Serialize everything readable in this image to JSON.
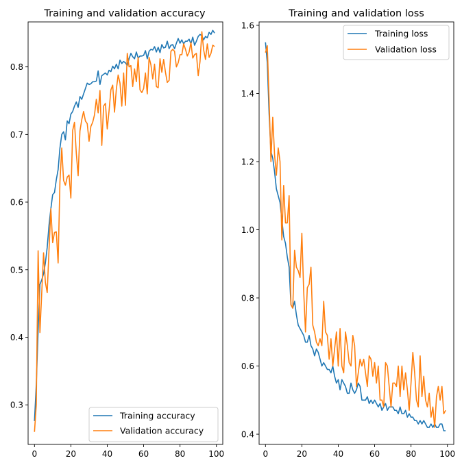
{
  "colors": {
    "training": "#1f77b4",
    "validation": "#ff7f0e"
  },
  "chart_data": [
    {
      "type": "line",
      "title": "Training and validation accuracy",
      "xlabel": "",
      "ylabel": "",
      "xlim": [
        -3.5,
        103.5
      ],
      "ylim": [
        0.2415,
        0.8665
      ],
      "xticks": [
        0,
        20,
        40,
        60,
        80,
        100
      ],
      "yticks": [
        0.3,
        0.4,
        0.5,
        0.6,
        0.7,
        0.8
      ],
      "grid": false,
      "legend_position": "lower right",
      "x": [
        0,
        1,
        2,
        3,
        4,
        5,
        6,
        7,
        8,
        9,
        10,
        11,
        12,
        13,
        14,
        15,
        16,
        17,
        18,
        19,
        20,
        21,
        22,
        23,
        24,
        25,
        26,
        27,
        28,
        29,
        30,
        31,
        32,
        33,
        34,
        35,
        36,
        37,
        38,
        39,
        40,
        41,
        42,
        43,
        44,
        45,
        46,
        47,
        48,
        49,
        50,
        51,
        52,
        53,
        54,
        55,
        56,
        57,
        58,
        59,
        60,
        61,
        62,
        63,
        64,
        65,
        66,
        67,
        68,
        69,
        70,
        71,
        72,
        73,
        74,
        75,
        76,
        77,
        78,
        79,
        80,
        81,
        82,
        83,
        84,
        85,
        86,
        87,
        88,
        89,
        90,
        91,
        92,
        93,
        94,
        95,
        96,
        97,
        98,
        99
      ],
      "series": [
        {
          "name": "Training accuracy",
          "color_key": "training",
          "values": [
            0.276,
            0.33,
            0.41,
            0.478,
            0.485,
            0.494,
            0.51,
            0.533,
            0.566,
            0.59,
            0.611,
            0.614,
            0.633,
            0.648,
            0.68,
            0.7,
            0.704,
            0.692,
            0.72,
            0.716,
            0.73,
            0.734,
            0.742,
            0.748,
            0.74,
            0.756,
            0.752,
            0.76,
            0.768,
            0.776,
            0.774,
            0.775,
            0.778,
            0.778,
            0.779,
            0.794,
            0.774,
            0.787,
            0.789,
            0.791,
            0.788,
            0.795,
            0.793,
            0.801,
            0.797,
            0.804,
            0.797,
            0.81,
            0.805,
            0.808,
            0.806,
            0.802,
            0.812,
            0.82,
            0.815,
            0.812,
            0.822,
            0.813,
            0.816,
            0.816,
            0.817,
            0.824,
            0.812,
            0.823,
            0.826,
            0.825,
            0.83,
            0.822,
            0.829,
            0.821,
            0.833,
            0.828,
            0.829,
            0.838,
            0.827,
            0.832,
            0.833,
            0.827,
            0.835,
            0.842,
            0.835,
            0.84,
            0.834,
            0.838,
            0.838,
            0.841,
            0.834,
            0.844,
            0.832,
            0.838,
            0.845,
            0.848,
            0.846,
            0.84,
            0.845,
            0.843,
            0.851,
            0.848,
            0.854,
            0.85
          ]
        },
        {
          "name": "Validation accuracy",
          "color_key": "validation",
          "values": [
            0.26,
            0.3,
            0.528,
            0.407,
            0.466,
            0.525,
            0.481,
            0.466,
            0.53,
            0.59,
            0.54,
            0.555,
            0.556,
            0.51,
            0.63,
            0.68,
            0.632,
            0.625,
            0.637,
            0.64,
            0.606,
            0.706,
            0.718,
            0.672,
            0.639,
            0.705,
            0.722,
            0.734,
            0.72,
            0.716,
            0.69,
            0.712,
            0.718,
            0.729,
            0.752,
            0.732,
            0.765,
            0.684,
            0.742,
            0.746,
            0.708,
            0.735,
            0.766,
            0.773,
            0.733,
            0.767,
            0.788,
            0.776,
            0.742,
            0.791,
            0.743,
            0.82,
            0.8,
            0.802,
            0.771,
            0.797,
            0.778,
            0.814,
            0.766,
            0.762,
            0.768,
            0.791,
            0.76,
            0.814,
            0.803,
            0.782,
            0.804,
            0.771,
            0.769,
            0.812,
            0.792,
            0.811,
            0.792,
            0.777,
            0.78,
            0.823,
            0.826,
            0.823,
            0.8,
            0.806,
            0.818,
            0.818,
            0.834,
            0.826,
            0.816,
            0.822,
            0.836,
            0.813,
            0.818,
            0.82,
            0.787,
            0.808,
            0.852,
            0.825,
            0.811,
            0.834,
            0.814,
            0.82,
            0.832,
            0.83
          ]
        }
      ]
    },
    {
      "type": "line",
      "title": "Training and validation loss",
      "xlabel": "",
      "ylabel": "",
      "xlim": [
        -3.5,
        103.5
      ],
      "ylim": [
        0.37,
        1.61
      ],
      "xticks": [
        0,
        20,
        40,
        60,
        80,
        100
      ],
      "yticks": [
        0.4,
        0.6,
        0.8,
        1.0,
        1.2,
        1.4,
        1.6
      ],
      "grid": false,
      "legend_position": "upper right",
      "x": [
        0,
        1,
        2,
        3,
        4,
        5,
        6,
        7,
        8,
        9,
        10,
        11,
        12,
        13,
        14,
        15,
        16,
        17,
        18,
        19,
        20,
        21,
        22,
        23,
        24,
        25,
        26,
        27,
        28,
        29,
        30,
        31,
        32,
        33,
        34,
        35,
        36,
        37,
        38,
        39,
        40,
        41,
        42,
        43,
        44,
        45,
        46,
        47,
        48,
        49,
        50,
        51,
        52,
        53,
        54,
        55,
        56,
        57,
        58,
        59,
        60,
        61,
        62,
        63,
        64,
        65,
        66,
        67,
        68,
        69,
        70,
        71,
        72,
        73,
        74,
        75,
        76,
        77,
        78,
        79,
        80,
        81,
        82,
        83,
        84,
        85,
        86,
        87,
        88,
        89,
        90,
        91,
        92,
        93,
        94,
        95,
        96,
        97,
        98,
        99
      ],
      "series": [
        {
          "name": "Training loss",
          "color_key": "training",
          "values": [
            1.55,
            1.49,
            1.34,
            1.23,
            1.21,
            1.17,
            1.12,
            1.1,
            1.08,
            1.03,
            0.98,
            0.96,
            0.92,
            0.89,
            0.78,
            0.77,
            0.79,
            0.75,
            0.72,
            0.71,
            0.7,
            0.69,
            0.67,
            0.67,
            0.69,
            0.66,
            0.65,
            0.63,
            0.65,
            0.64,
            0.62,
            0.6,
            0.61,
            0.6,
            0.59,
            0.59,
            0.58,
            0.6,
            0.57,
            0.55,
            0.56,
            0.53,
            0.56,
            0.55,
            0.54,
            0.52,
            0.52,
            0.55,
            0.53,
            0.52,
            0.53,
            0.55,
            0.54,
            0.5,
            0.5,
            0.5,
            0.51,
            0.49,
            0.5,
            0.49,
            0.5,
            0.49,
            0.48,
            0.49,
            0.47,
            0.48,
            0.49,
            0.47,
            0.48,
            0.48,
            0.48,
            0.47,
            0.47,
            0.46,
            0.48,
            0.46,
            0.46,
            0.47,
            0.45,
            0.46,
            0.45,
            0.45,
            0.44,
            0.44,
            0.43,
            0.44,
            0.43,
            0.44,
            0.43,
            0.42,
            0.42,
            0.43,
            0.42,
            0.43,
            0.42,
            0.42,
            0.43,
            0.43,
            0.41,
            0.41
          ]
        },
        {
          "name": "Validation loss",
          "color_key": "validation",
          "values": [
            1.52,
            1.54,
            1.38,
            1.2,
            1.33,
            1.22,
            1.16,
            1.24,
            1.2,
            0.97,
            1.13,
            1.02,
            1.02,
            1.1,
            0.78,
            0.77,
            0.94,
            0.89,
            0.88,
            0.86,
            0.99,
            0.82,
            0.7,
            0.83,
            0.84,
            0.89,
            0.72,
            0.7,
            0.67,
            0.66,
            0.68,
            0.66,
            0.79,
            0.7,
            0.69,
            0.62,
            0.68,
            0.6,
            0.65,
            0.7,
            0.6,
            0.71,
            0.6,
            0.58,
            0.7,
            0.66,
            0.61,
            0.6,
            0.69,
            0.66,
            0.54,
            0.58,
            0.62,
            0.6,
            0.62,
            0.58,
            0.54,
            0.63,
            0.62,
            0.57,
            0.61,
            0.55,
            0.6,
            0.5,
            0.5,
            0.48,
            0.61,
            0.6,
            0.54,
            0.48,
            0.55,
            0.55,
            0.54,
            0.6,
            0.51,
            0.6,
            0.53,
            0.58,
            0.53,
            0.47,
            0.55,
            0.64,
            0.58,
            0.5,
            0.48,
            0.63,
            0.51,
            0.57,
            0.5,
            0.48,
            0.52,
            0.45,
            0.48,
            0.42,
            0.51,
            0.54,
            0.5,
            0.54,
            0.46,
            0.47
          ]
        }
      ]
    }
  ]
}
